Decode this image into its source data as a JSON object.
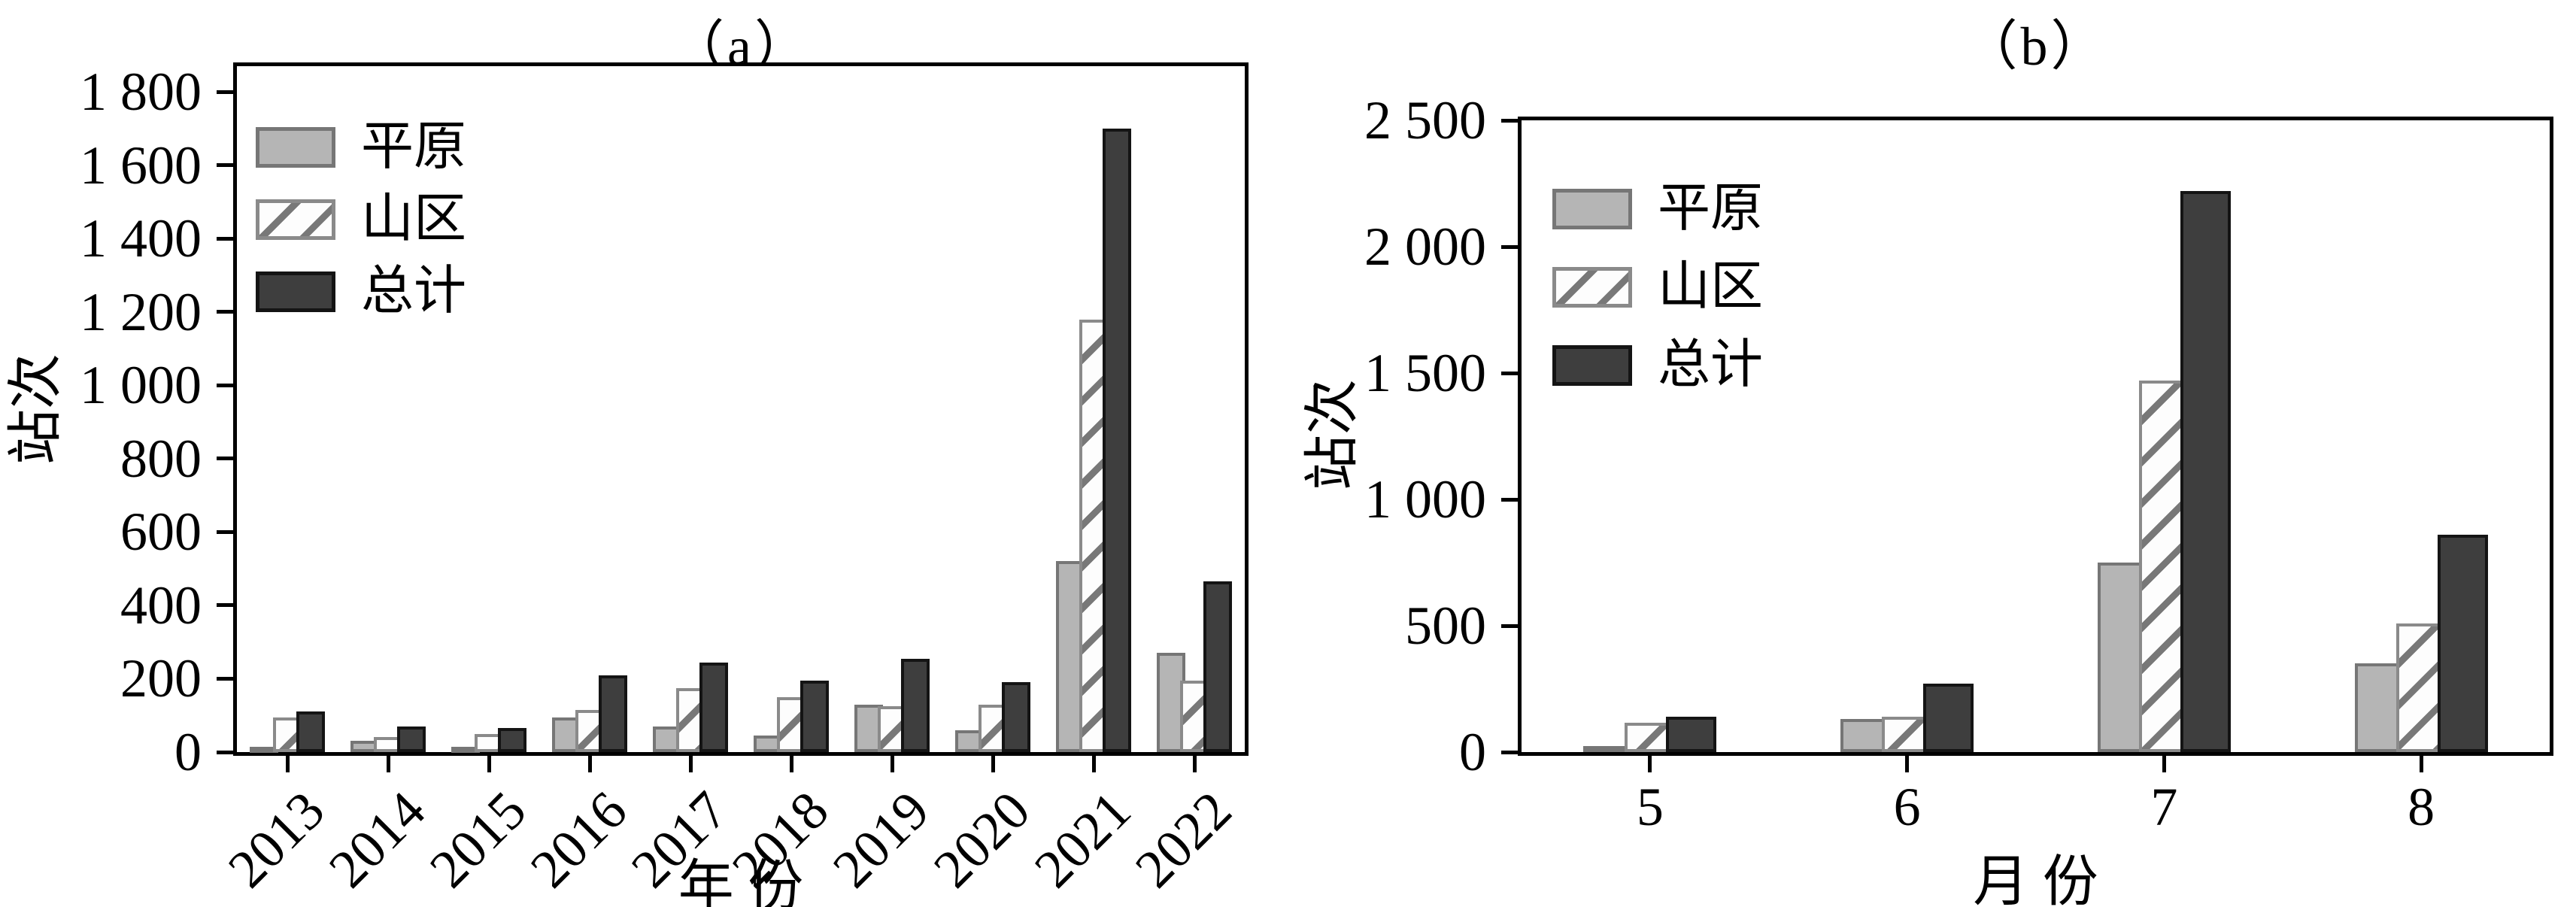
{
  "figure_background": "#ffffff",
  "series_palette": {
    "plain_fill": "#b5b5b5",
    "plain_edge": "#767676",
    "mountain_fill": "#fdfdfd",
    "mountain_edge": "#8a8a8a",
    "mountain_hatch": "#787878",
    "total_fill": "#3e3e3e",
    "total_edge": "#141414",
    "axis_color": "#000000"
  },
  "chart_data": [
    {
      "type": "bar",
      "title": "（a）",
      "xlabel": "年 份",
      "ylabel": "站次",
      "categories": [
        "2013",
        "2014",
        "2015",
        "2016",
        "2017",
        "2018",
        "2019",
        "2020",
        "2021",
        "2022"
      ],
      "series": [
        {
          "name": "平原",
          "style": "plain",
          "values": [
            15,
            30,
            15,
            95,
            70,
            45,
            130,
            60,
            520,
            270
          ]
        },
        {
          "name": "山区",
          "style": "mountain",
          "values": [
            95,
            40,
            50,
            115,
            175,
            150,
            125,
            130,
            1180,
            195
          ]
        },
        {
          "name": "总计",
          "style": "total",
          "values": [
            110,
            70,
            65,
            210,
            245,
            195,
            255,
            190,
            1700,
            465
          ]
        }
      ],
      "ylim": [
        0,
        1870
      ],
      "yticks": [
        0,
        200,
        400,
        600,
        800,
        1000,
        1200,
        1400,
        1600,
        1800
      ],
      "ytick_labels": [
        "0",
        "200",
        "400",
        "600",
        "800",
        "1 000",
        "1 200",
        "1 400",
        "1 600",
        "1 800"
      ],
      "xtick_rotation": 45,
      "grid": false,
      "legend_position": "upper-left"
    },
    {
      "type": "bar",
      "title": "（b）",
      "xlabel": "月 份",
      "ylabel": "站次",
      "categories": [
        "5",
        "6",
        "7",
        "8"
      ],
      "series": [
        {
          "name": "平原",
          "style": "plain",
          "values": [
            25,
            130,
            750,
            350
          ]
        },
        {
          "name": "山区",
          "style": "mountain",
          "values": [
            115,
            140,
            1470,
            510
          ]
        },
        {
          "name": "总计",
          "style": "total",
          "values": [
            140,
            270,
            2220,
            860
          ]
        }
      ],
      "ylim": [
        0,
        2500
      ],
      "yticks": [
        0,
        500,
        1000,
        1500,
        2000,
        2500
      ],
      "ytick_labels": [
        "0",
        "500",
        "1 000",
        "1 500",
        "2 000",
        "2 500"
      ],
      "xtick_rotation": 0,
      "grid": false,
      "legend_position": "upper-left"
    }
  ]
}
